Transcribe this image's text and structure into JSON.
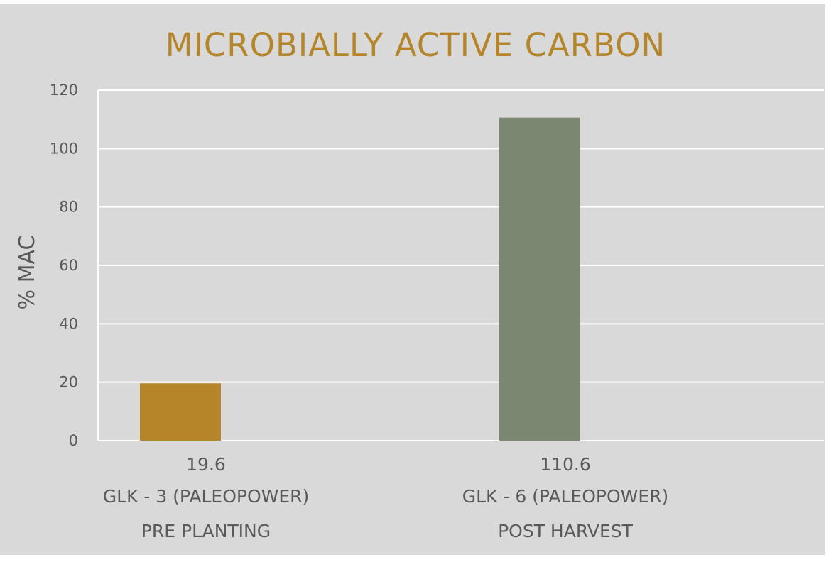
{
  "chart_data": {
    "type": "bar",
    "title": "MICROBIALLY ACTIVE CARBON",
    "xlabel": "",
    "ylabel": "% MAC",
    "ylim": [
      0,
      120
    ],
    "yticks": [
      "0",
      "20",
      "40",
      "60",
      "80",
      "100",
      "120"
    ],
    "grid": true,
    "legend": "none",
    "categories": [
      {
        "data_label": "19.6",
        "line1": "GLK - 3 (PALEOPOWER)",
        "line2": "PRE PLANTING"
      },
      {
        "data_label": "110.6",
        "line1": "GLK - 6 (PALEOPOWER)",
        "line2": "POST HARVEST"
      }
    ],
    "values": [
      19.6,
      110.6
    ],
    "colors": [
      "#b5852a",
      "#7a8872"
    ]
  },
  "colors": {
    "background": "#d9d9d9",
    "title": "#b58529",
    "text": "#595959",
    "grid": "#ffffff"
  }
}
